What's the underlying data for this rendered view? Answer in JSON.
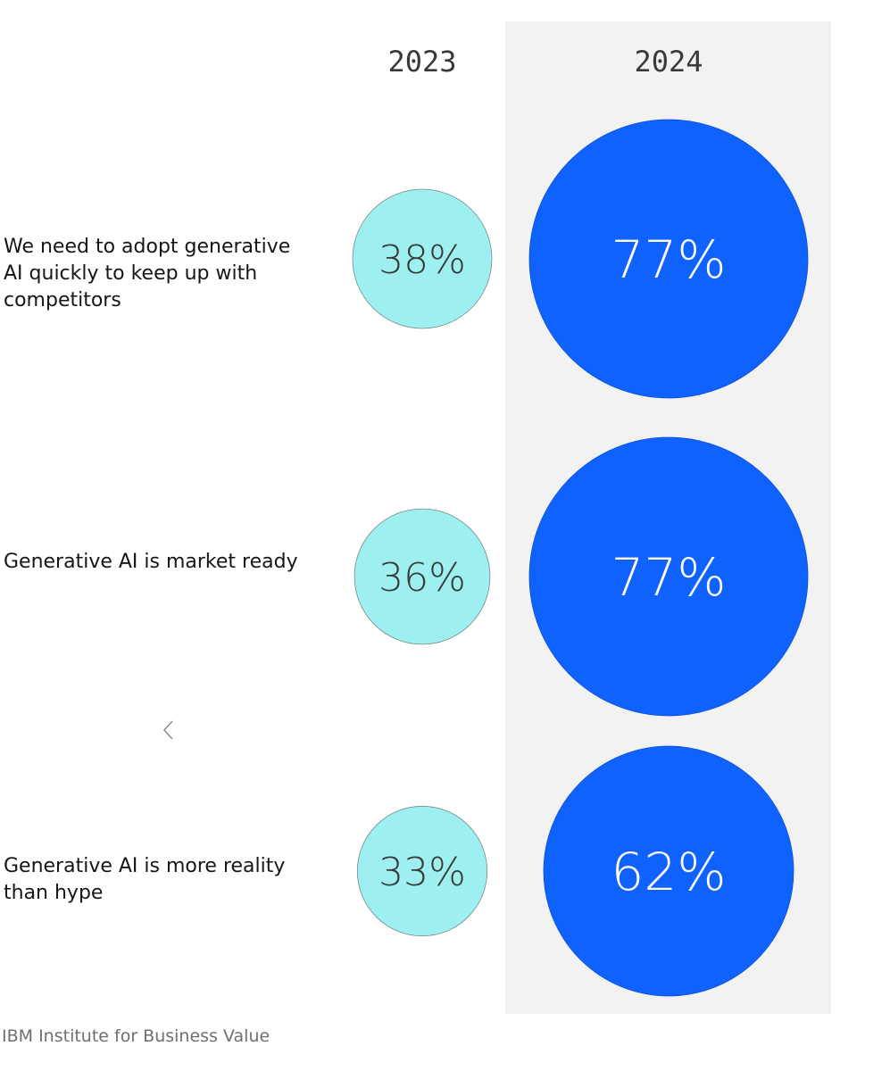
{
  "chart_data": {
    "type": "bubble",
    "columns": [
      "2023",
      "2024"
    ],
    "rows": [
      {
        "label": "We need to adopt generative AI quickly to keep up with competitors",
        "values": [
          38,
          77
        ]
      },
      {
        "label": "Generative AI is market ready",
        "values": [
          36,
          77
        ]
      },
      {
        "label": "Generative AI is more reality than hype",
        "values": [
          33,
          62
        ]
      }
    ],
    "value_suffix": "%",
    "highlight_column": "2024",
    "colors": {
      "2023_fill": "#9EF0F0",
      "2024_fill": "#0F62FE",
      "highlight_band": "#F2F2F2",
      "2023_text": "#393939",
      "2024_text": "#FFFFFF"
    }
  },
  "footer": {
    "source": "IBM Institute for Business Value"
  },
  "icons": {
    "nav": "chevron-left-icon"
  }
}
